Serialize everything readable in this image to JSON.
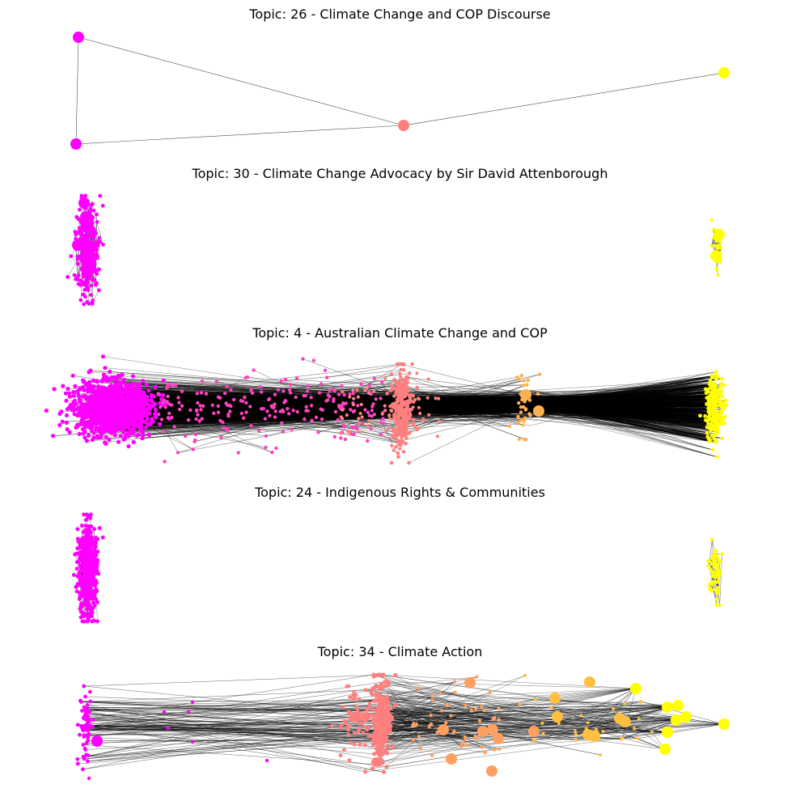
{
  "chart_data": [
    {
      "type": "network",
      "title": "Topic: 26 - Climate Change and COP Discourse",
      "grid": false,
      "node_groups": [
        {
          "color": "#ff00ff",
          "nodes": 2
        },
        {
          "color": "#ff7f7f",
          "nodes": 1
        },
        {
          "color": "#ffff00",
          "nodes": 1
        }
      ]
    },
    {
      "type": "network",
      "title": "Topic: 30 - Climate Change Advocacy by Sir David Attenborough",
      "grid": false,
      "node_groups": [
        {
          "color": "#ff00ff",
          "nodes": 300
        },
        {
          "color": "#ffff00",
          "nodes": 30
        }
      ]
    },
    {
      "type": "network",
      "title": "Topic: 4 - Australian Climate Change and COP",
      "grid": false,
      "node_groups": [
        {
          "color": "#ff00ff",
          "nodes": 1500
        },
        {
          "color": "#ff40c0",
          "nodes": 200
        },
        {
          "color": "#ff7f7f",
          "nodes": 300
        },
        {
          "color": "#ffb050",
          "nodes": 30
        },
        {
          "color": "#ffff00",
          "nodes": 150
        }
      ]
    },
    {
      "type": "network",
      "title": "Topic: 24 - Indigenous Rights & Communities",
      "grid": false,
      "node_groups": [
        {
          "color": "#ff00ff",
          "nodes": 400
        },
        {
          "color": "#ffff00",
          "nodes": 60
        }
      ]
    },
    {
      "type": "network",
      "title": "Topic: 34 - Climate Action",
      "grid": false,
      "node_groups": [
        {
          "color": "#ff00ff",
          "nodes": 60
        },
        {
          "color": "#ff7f7f",
          "nodes": 300
        },
        {
          "color": "#ffa060",
          "nodes": 60
        },
        {
          "color": "#ffc040",
          "nodes": 40
        },
        {
          "color": "#ffff00",
          "nodes": 20
        }
      ]
    }
  ]
}
